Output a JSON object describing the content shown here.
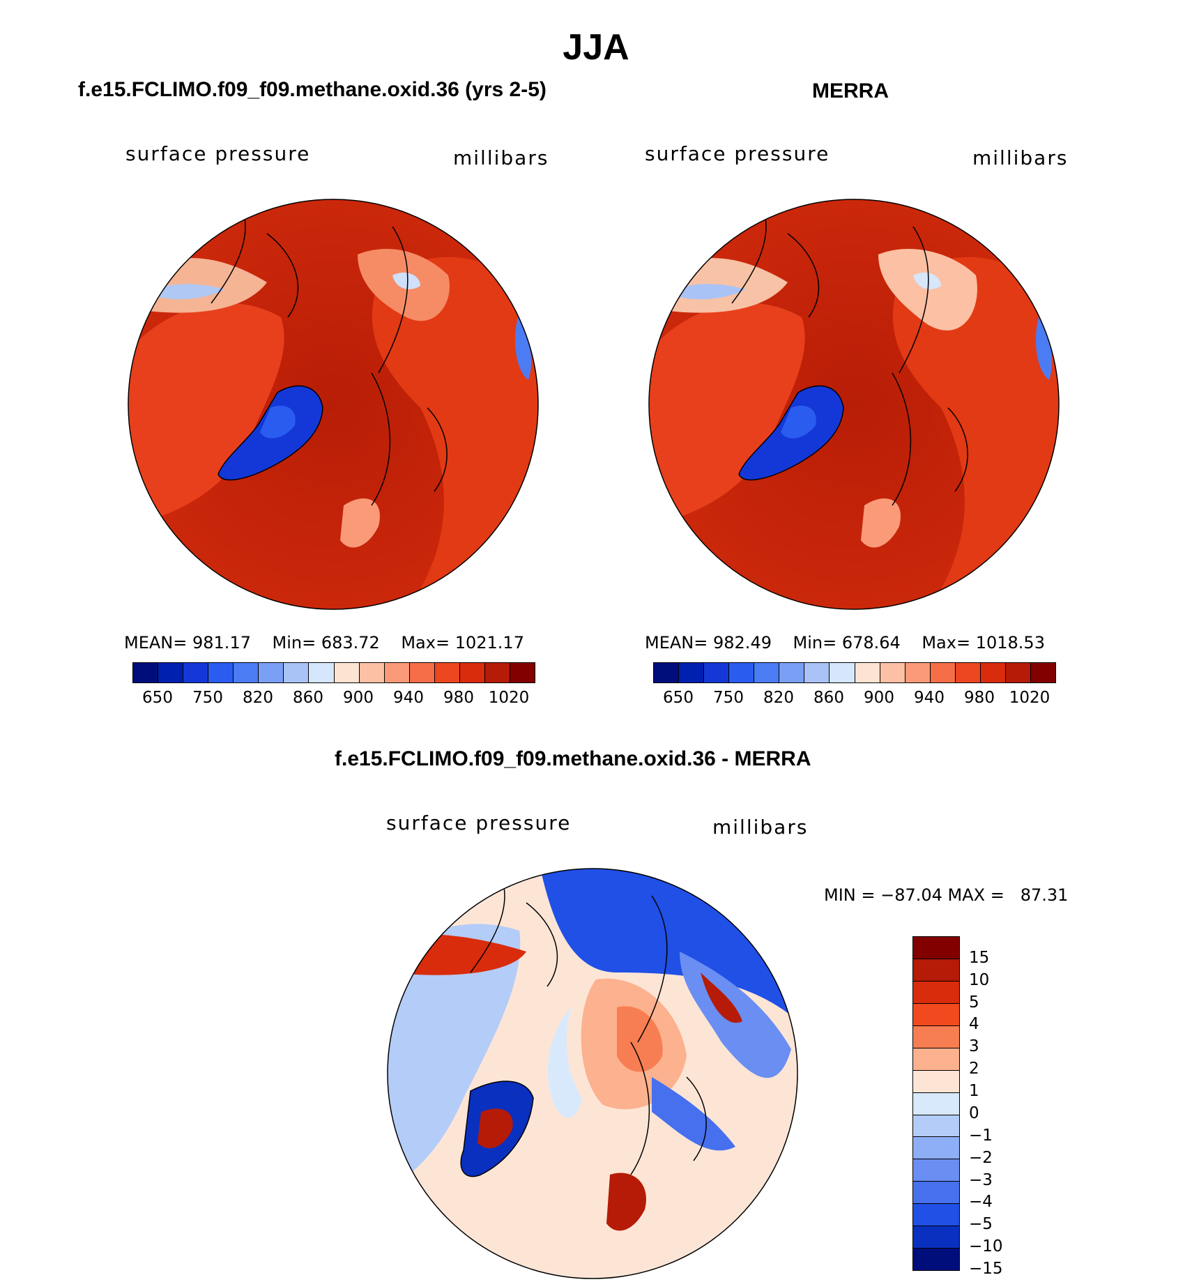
{
  "title": "JJA",
  "panels": [
    {
      "title": "f.e15.FCLIMO.f09_f09.methane.oxid.36 (yrs 2-5)",
      "variable": "surface pressure",
      "units": "millibars",
      "stats": {
        "mean_label": "MEAN=",
        "mean": "981.17",
        "min_label": "Min=",
        "min": "683.72",
        "max_label": "Max=",
        "max": "1021.17"
      }
    },
    {
      "title": "MERRA",
      "variable": "surface pressure",
      "units": "millibars",
      "stats": {
        "mean_label": "MEAN=",
        "mean": "982.49",
        "min_label": "Min=",
        "min": "678.64",
        "max_label": "Max=",
        "max": "1018.53"
      }
    }
  ],
  "abs_colorbar": {
    "colors": [
      "#000e7c",
      "#0020b0",
      "#1438d8",
      "#2a5cf0",
      "#4c7cf4",
      "#7aa0f6",
      "#a9c3f7",
      "#d6e6fb",
      "#fde3d2",
      "#fcc0a4",
      "#fb9a78",
      "#f56e48",
      "#ec4720",
      "#d92c0c",
      "#b51b06",
      "#820000"
    ],
    "labels": [
      "650",
      "750",
      "820",
      "860",
      "900",
      "940",
      "980",
      "1020"
    ]
  },
  "diff_panel": {
    "title": "f.e15.FCLIMO.f09_f09.methane.oxid.36 - MERRA",
    "variable": "surface pressure",
    "units": "millibars",
    "minmax": "MIN = −87.04 MAX =   87.31",
    "colorbar": {
      "colors": [
        "#820000",
        "#b51b06",
        "#d92c0c",
        "#f24a1e",
        "#f77e52",
        "#fcb18f",
        "#fde5d6",
        "#d8e9fb",
        "#b4ccf8",
        "#8eaef6",
        "#6a8ef2",
        "#4670ee",
        "#2050e6",
        "#0a30c0",
        "#000e7c"
      ],
      "labels": [
        "15",
        "10",
        "5",
        "4",
        "3",
        "2",
        "1",
        "0",
        "−1",
        "−2",
        "−3",
        "−4",
        "−5",
        "−10",
        "−15"
      ]
    }
  }
}
